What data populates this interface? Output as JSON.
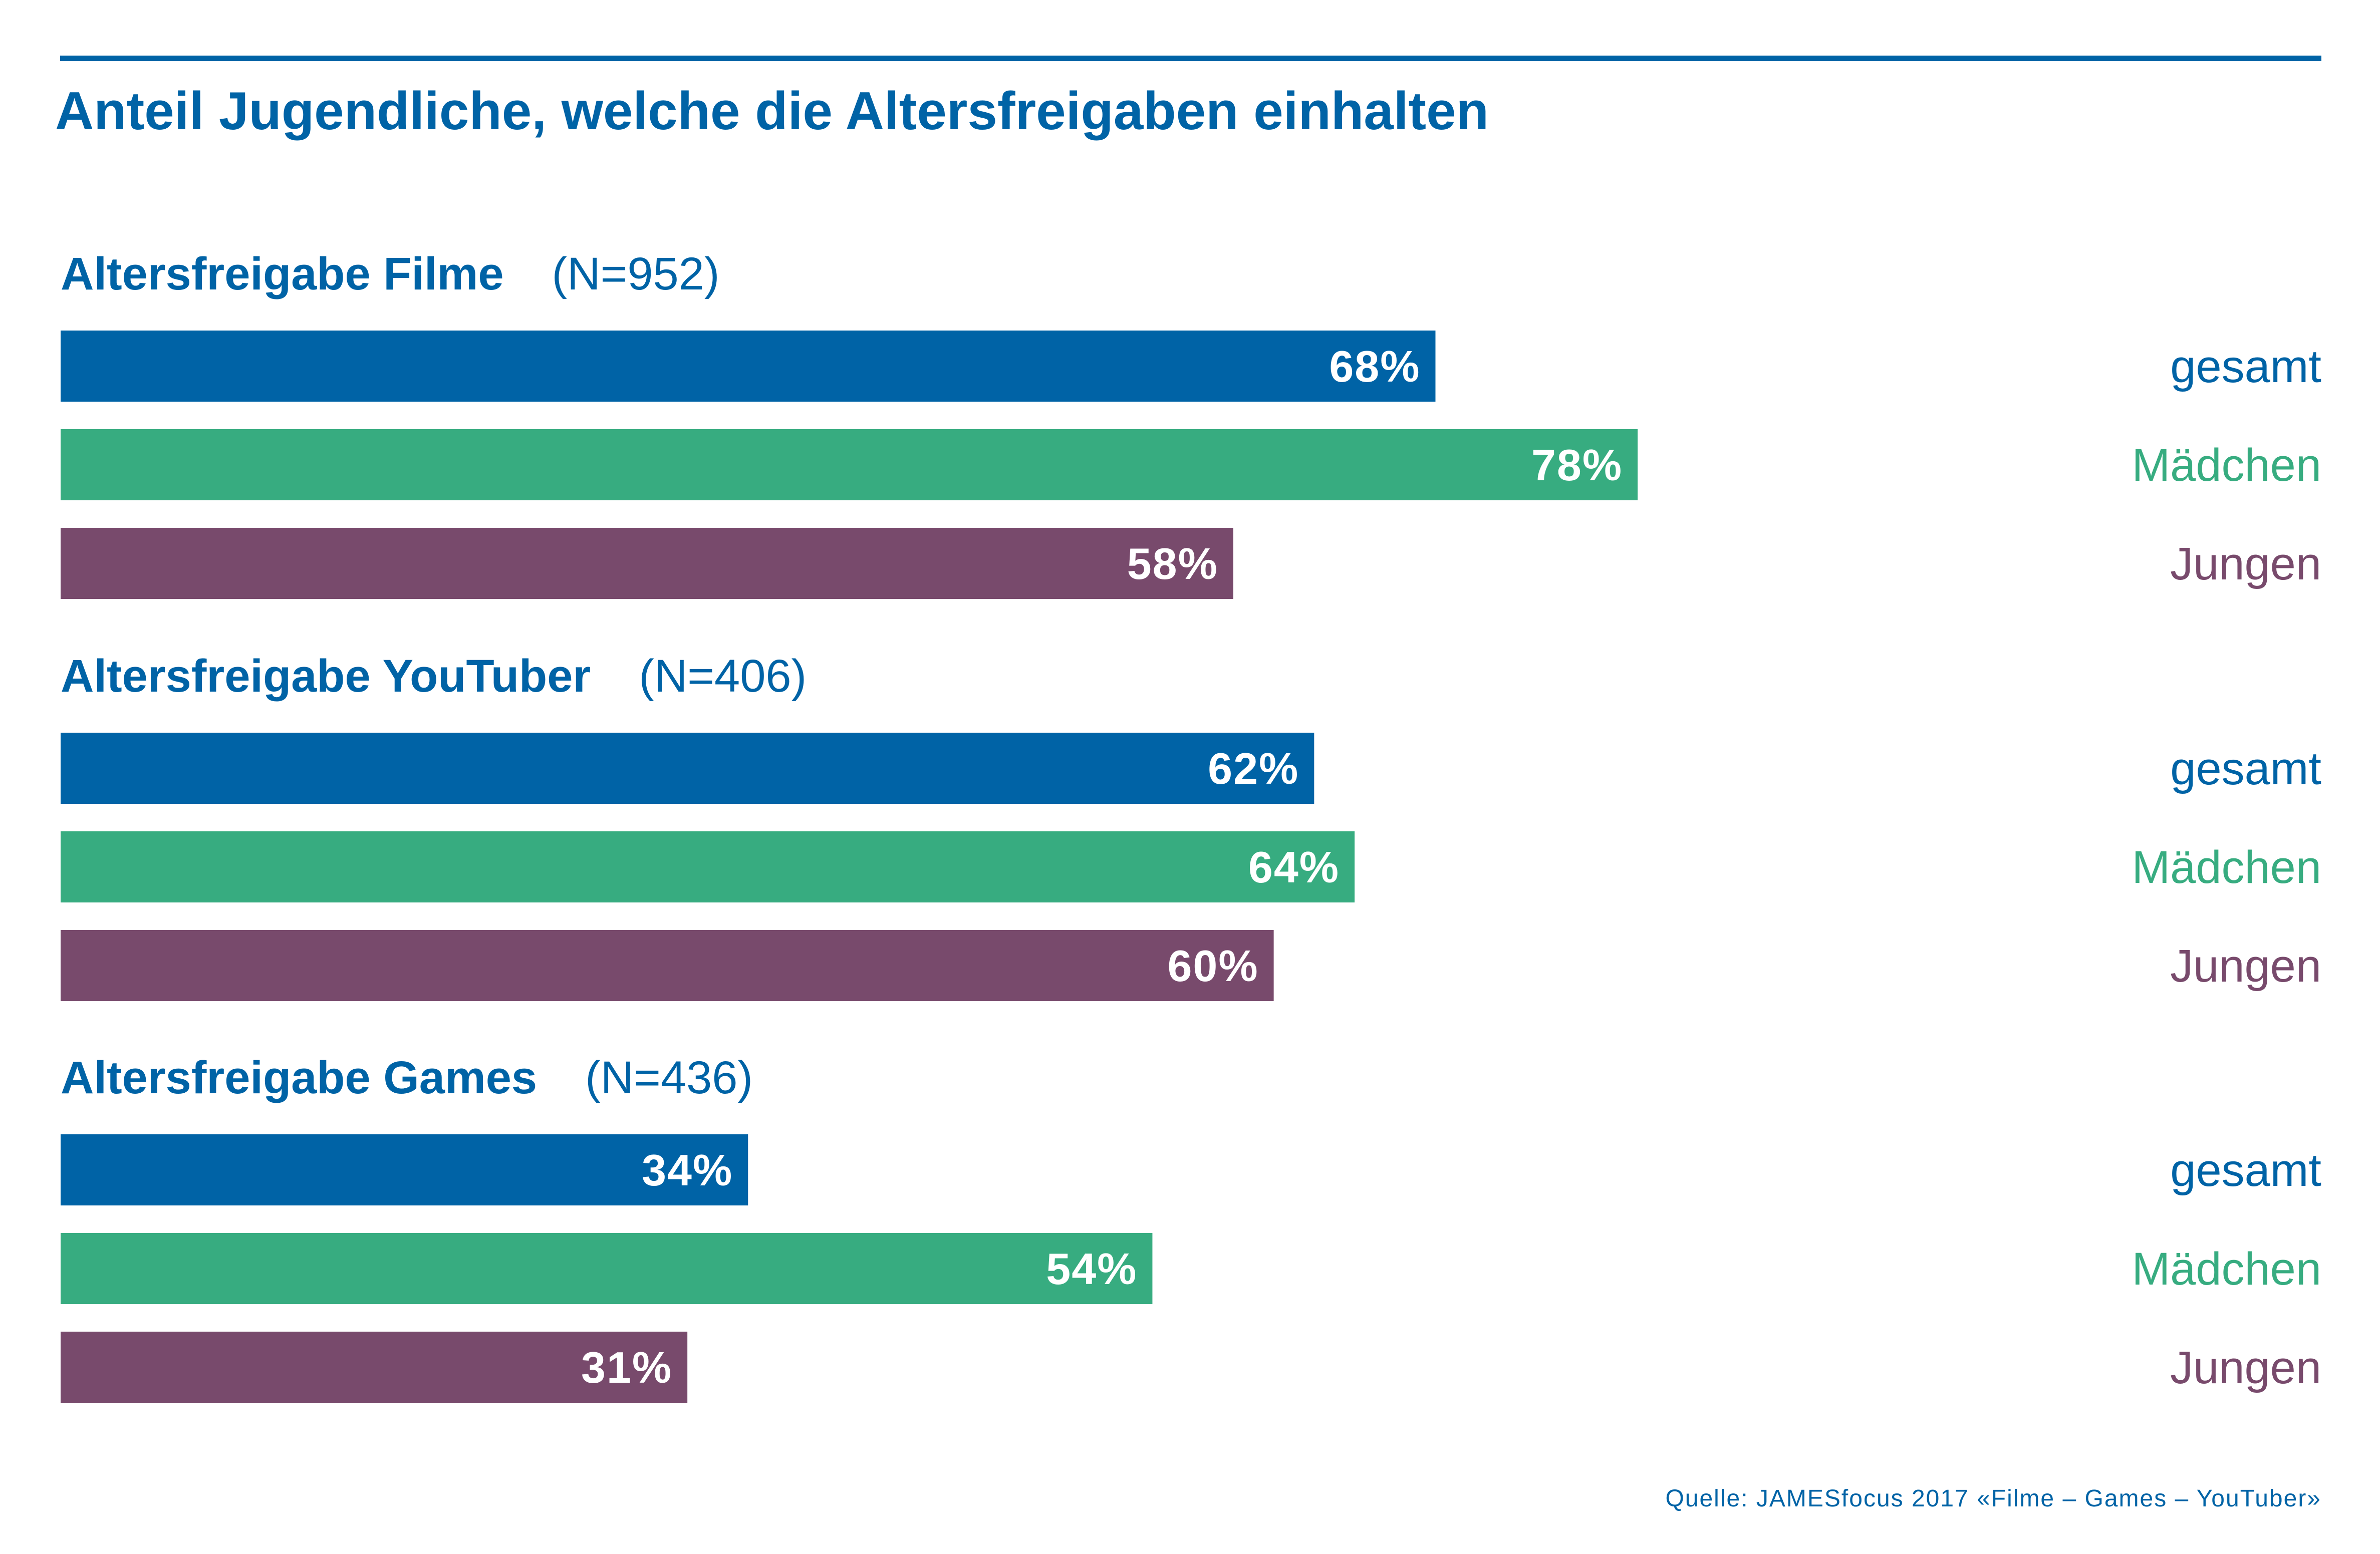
{
  "title": "Anteil Jugendliche, welche die Altersfreigaben einhalten",
  "source": "Quelle: JAMESfocus 2017 «Filme – Games – YouTuber»",
  "colors": {
    "gesamt": "#0063a6",
    "Mädchen": "#37ac80",
    "Jungen": "#784a6c",
    "title": "#0063a6",
    "rule": "#0063a6"
  },
  "chart_data": {
    "type": "bar",
    "orientation": "horizontal",
    "title": "Anteil Jugendliche, welche die Altersfreigaben einhalten",
    "xlim": [
      0,
      100
    ],
    "value_suffix": "%",
    "grid": false,
    "series_names": [
      "gesamt",
      "Mädchen",
      "Jungen"
    ],
    "groups": [
      {
        "label": "Altersfreigabe Filme",
        "n": "(N=952)",
        "values": [
          68,
          78,
          58
        ]
      },
      {
        "label": "Altersfreigabe YouTuber",
        "n": "(N=406)",
        "values": [
          62,
          64,
          60
        ]
      },
      {
        "label": "Altersfreigabe Games",
        "n": "(N=436)",
        "values": [
          34,
          54,
          31
        ]
      }
    ]
  }
}
